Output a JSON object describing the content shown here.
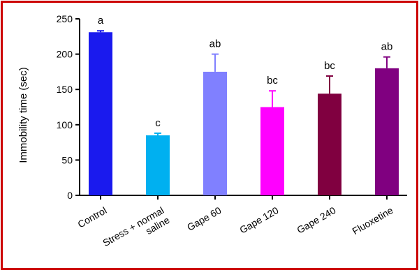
{
  "colors": {
    "frame": "#cc0000",
    "axis": "#000000"
  },
  "chart_data": {
    "type": "bar",
    "title": "",
    "xlabel": "",
    "ylabel": "Immobility time (sec)",
    "ylim": [
      0,
      250
    ],
    "yticks": [
      0,
      50,
      100,
      150,
      200,
      250
    ],
    "grid": false,
    "categories": [
      {
        "lines": [
          "Control"
        ]
      },
      {
        "lines": [
          "Stress + normal",
          "saline"
        ]
      },
      {
        "lines": [
          "Gape 60"
        ]
      },
      {
        "lines": [
          "Gape 120"
        ]
      },
      {
        "lines": [
          "Gape 240"
        ]
      },
      {
        "lines": [
          "Fluoxetine"
        ]
      }
    ],
    "values": [
      231,
      85,
      175,
      125,
      144,
      180
    ],
    "errors": [
      2,
      3,
      25,
      23,
      25,
      16
    ],
    "significance": [
      "a",
      "c",
      "ab",
      "bc",
      "bc",
      "ab"
    ],
    "bar_colors": [
      "#1a1aee",
      "#00b0f0",
      "#8080ff",
      "#ff00ff",
      "#800040",
      "#800080"
    ]
  }
}
